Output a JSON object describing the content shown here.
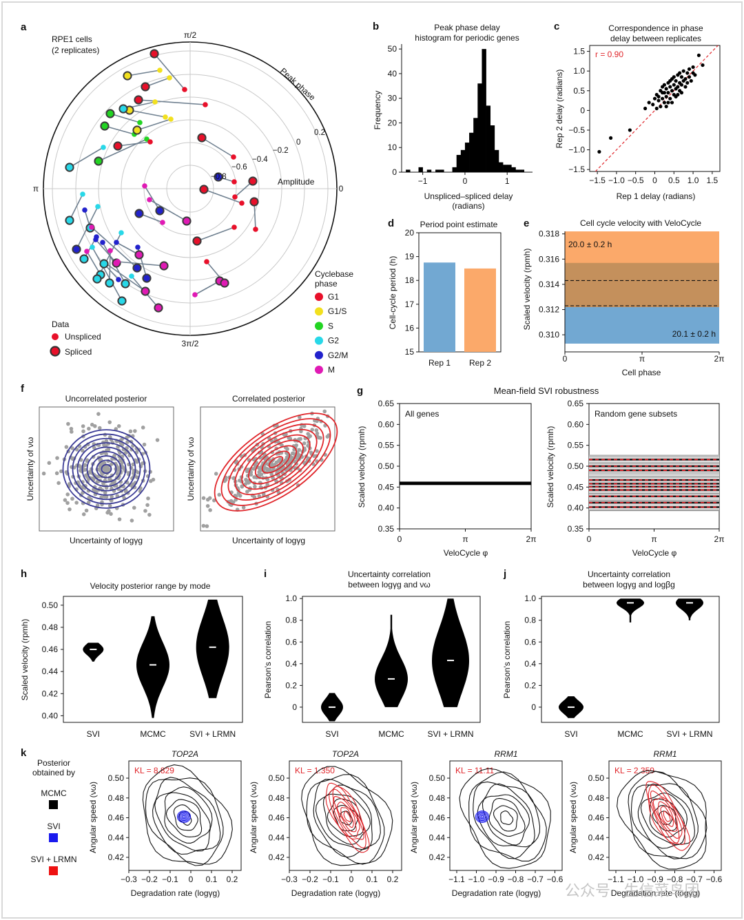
{
  "figure": {
    "panels": {
      "a": {
        "letter": "a",
        "title_lines": [
          "RPE1 cells",
          "(2 replicates)"
        ],
        "angle_labels": [
          "π/2",
          "π",
          "3π/2",
          "0"
        ],
        "radial_labels": [
          "0.2",
          "−0.2",
          "−0.4",
          "−0.6",
          "−0.8"
        ],
        "axis_peak_phase": "Peak phase",
        "axis_amplitude": "Amplitude",
        "data_legend_title": "Data",
        "data_legend": [
          "Unspliced",
          "Spliced"
        ],
        "phase_legend_title": [
          "Cyclebase",
          "phase"
        ],
        "phase_legend": [
          {
            "label": "G1",
            "color": "#e8102a"
          },
          {
            "label": "G1/S",
            "color": "#f2e01e"
          },
          {
            "label": "S",
            "color": "#22d422"
          },
          {
            "label": "G2",
            "color": "#28d8e8"
          },
          {
            "label": "G2/M",
            "color": "#2222cc"
          },
          {
            "label": "M",
            "color": "#e01ab4"
          }
        ]
      },
      "b": {
        "letter": "b",
        "chart_data": {
          "type": "bar",
          "title": "Peak phase delay\nhistogram for periodic genes",
          "xlabel": "Unspliced–spliced delay\n(radians)",
          "ylabel": "Frequency",
          "xticks": [
            "−1",
            "0",
            "1"
          ],
          "yticks": [
            "0",
            "10",
            "20",
            "30",
            "40",
            "50"
          ],
          "xlim": [
            -1.5,
            1.6
          ],
          "ylim": [
            0,
            52
          ],
          "bin_width": 0.1,
          "bins": [
            {
              "x": -1.35,
              "value": 1
            },
            {
              "x": -1.05,
              "value": 2
            },
            {
              "x": -0.85,
              "value": 1
            },
            {
              "x": -0.65,
              "value": 1
            },
            {
              "x": -0.55,
              "value": 1
            },
            {
              "x": -0.25,
              "value": 2
            },
            {
              "x": -0.15,
              "value": 7
            },
            {
              "x": -0.05,
              "value": 9
            },
            {
              "x": 0.05,
              "value": 12
            },
            {
              "x": 0.15,
              "value": 16
            },
            {
              "x": 0.25,
              "value": 22
            },
            {
              "x": 0.35,
              "value": 36
            },
            {
              "x": 0.45,
              "value": 50
            },
            {
              "x": 0.55,
              "value": 27
            },
            {
              "x": 0.65,
              "value": 19
            },
            {
              "x": 0.75,
              "value": 9
            },
            {
              "x": 0.85,
              "value": 4
            },
            {
              "x": 0.95,
              "value": 3
            },
            {
              "x": 1.05,
              "value": 3
            },
            {
              "x": 1.15,
              "value": 2
            },
            {
              "x": 1.25,
              "value": 1
            },
            {
              "x": 1.35,
              "value": 1
            }
          ]
        }
      },
      "c": {
        "letter": "c",
        "chart_data": {
          "type": "scatter",
          "title": "Correspondence in phase\ndelay between replicates",
          "xlabel": "Rep 1 delay (radians)",
          "ylabel": "Rep 2 delay (radians)",
          "annotation": "r = 0.90",
          "xticks": [
            "−1.5",
            "−1.0",
            "−0.5",
            "0",
            "0.5",
            "1.0",
            "1.5"
          ],
          "yticks": [
            "−1.5",
            "−1.0",
            "−0.5",
            "0",
            "0.5",
            "1.0",
            "1.5"
          ],
          "xlim": [
            -1.7,
            1.7
          ],
          "ylim": [
            -1.55,
            1.65
          ],
          "points": [
            [
              -1.45,
              -1.05
            ],
            [
              -1.15,
              -0.7
            ],
            [
              -0.65,
              -0.5
            ],
            [
              -0.25,
              0.05
            ],
            [
              -0.15,
              0.2
            ],
            [
              -0.05,
              0.15
            ],
            [
              0.0,
              0.3
            ],
            [
              0.05,
              0.4
            ],
            [
              0.1,
              0.35
            ],
            [
              0.1,
              0.25
            ],
            [
              0.15,
              0.5
            ],
            [
              0.2,
              0.3
            ],
            [
              0.2,
              0.6
            ],
            [
              0.25,
              0.45
            ],
            [
              0.25,
              0.2
            ],
            [
              0.3,
              0.55
            ],
            [
              0.3,
              0.35
            ],
            [
              0.35,
              0.7
            ],
            [
              0.35,
              0.45
            ],
            [
              0.4,
              0.6
            ],
            [
              0.4,
              0.3
            ],
            [
              0.45,
              0.8
            ],
            [
              0.45,
              0.5
            ],
            [
              0.5,
              0.65
            ],
            [
              0.5,
              0.4
            ],
            [
              0.55,
              0.75
            ],
            [
              0.55,
              0.55
            ],
            [
              0.6,
              0.9
            ],
            [
              0.6,
              0.6
            ],
            [
              0.65,
              0.7
            ],
            [
              0.65,
              0.5
            ],
            [
              0.7,
              0.85
            ],
            [
              0.7,
              0.65
            ],
            [
              0.75,
              0.75
            ],
            [
              0.75,
              1.0
            ],
            [
              0.8,
              0.8
            ],
            [
              0.8,
              0.6
            ],
            [
              0.85,
              0.95
            ],
            [
              0.9,
              0.85
            ],
            [
              0.9,
              1.05
            ],
            [
              0.95,
              0.75
            ],
            [
              1.0,
              1.1
            ],
            [
              1.05,
              0.9
            ],
            [
              1.15,
              1.4
            ],
            [
              1.25,
              1.15
            ],
            [
              0.45,
              0.2
            ],
            [
              0.3,
              0.1
            ],
            [
              0.15,
              0.1
            ],
            [
              0.55,
              0.35
            ],
            [
              0.35,
              0.2
            ],
            [
              0.6,
              0.4
            ],
            [
              0.7,
              0.45
            ],
            [
              0.2,
              0.45
            ],
            [
              0.5,
              0.85
            ],
            [
              0.85,
              0.7
            ],
            [
              0.4,
              0.75
            ],
            [
              0.65,
              0.95
            ],
            [
              1.0,
              0.95
            ],
            [
              0.05,
              0.05
            ],
            [
              0.25,
              0.65
            ]
          ]
        }
      },
      "d": {
        "letter": "d",
        "chart_data": {
          "type": "bar",
          "title": "Period point estimate",
          "ylabel": "Cell-cycle period (h)",
          "categories": [
            "Rep 1",
            "Rep 2"
          ],
          "values": [
            18.75,
            18.5
          ],
          "colors": [
            "#72a8d2",
            "#fba96a"
          ],
          "ylim": [
            15,
            20
          ],
          "yticks": [
            "15",
            "16",
            "17",
            "18",
            "19",
            "20"
          ]
        }
      },
      "e": {
        "letter": "e",
        "chart_data": {
          "type": "area",
          "title": "Cell cycle velocity with VeloCycle",
          "xlabel": "Cell phase",
          "ylabel": "Scaled velocity (rpmh)",
          "xticks": [
            "0",
            "π",
            "2π"
          ],
          "yticks": [
            "0.310",
            "0.312",
            "0.314",
            "0.316",
            "0.318"
          ],
          "ylim": [
            0.3093,
            0.3182
          ],
          "series": [
            {
              "name": "",
              "label": "20.0 ± 0.2 h",
              "band": [
                0.3122,
                0.3182
              ],
              "color": "#fba96a"
            },
            {
              "name": "",
              "label": "20.1 ± 0.2 h",
              "band": [
                0.3093,
                0.3157
              ],
              "color": "#72a8d2"
            }
          ],
          "dashed": [
            0.3143,
            0.3123
          ]
        }
      },
      "f": {
        "letter": "f",
        "left_title": "Uncorrelated posterior",
        "right_title": "Correlated posterior",
        "ylabel": "Uncertainty of νω",
        "xlabel": "Uncertainty of logγg",
        "left_color": "#3a3a96",
        "right_color": "#e0252a"
      },
      "g": {
        "letter": "g",
        "chart_data": {
          "type": "line",
          "title": "Mean-field SVI robustness",
          "subplots": [
            {
              "label": "All genes",
              "band": [
                0.455,
                0.463
              ],
              "lines": [
                0.459
              ]
            },
            {
              "label": "Random gene subsets",
              "band": [
                0.395,
                0.525
              ],
              "lines": [
                0.402,
                0.413,
                0.428,
                0.443,
                0.451,
                0.458,
                0.467,
                0.49,
                0.5,
                0.516
              ]
            }
          ],
          "xlabel": "VeloCycle φ",
          "ylabel": "Scaled velocity (rpmh)",
          "xticks": [
            "0",
            "π",
            "2π"
          ],
          "yticks": [
            "0.35",
            "0.40",
            "0.45",
            "0.50",
            "0.55",
            "0.60",
            "0.65"
          ],
          "ylim": [
            0.35,
            0.65
          ]
        }
      },
      "h": {
        "letter": "h",
        "chart_data": {
          "type": "violin",
          "title": "Velocity posterior range by mode",
          "ylabel": "Scaled velocity (rpmh)",
          "categories": [
            "SVI",
            "MCMC",
            "SVI + LRMN"
          ],
          "yticks": [
            "0.40",
            "0.42",
            "0.44",
            "0.46",
            "0.48",
            "0.50"
          ],
          "ylim": [
            0.394,
            0.508
          ],
          "medians": [
            0.46,
            0.446,
            0.462
          ],
          "ranges": [
            [
              0.449,
              0.466
            ],
            [
              0.398,
              0.49
            ],
            [
              0.416,
              0.505
            ]
          ]
        }
      },
      "i": {
        "letter": "i",
        "chart_data": {
          "type": "violin",
          "title": "Uncertainty correlation\nbetween logγg and νω",
          "ylabel": "Pearson's correlation",
          "categories": [
            "SVI",
            "MCMC",
            "SVI + LRMN"
          ],
          "yticks": [
            "0",
            "0.2",
            "0.4",
            "0.6",
            "0.8",
            "1.0"
          ],
          "ylim": [
            -0.14,
            1.02
          ],
          "medians": [
            0.0,
            0.26,
            0.43
          ],
          "ranges": [
            [
              -0.13,
              0.13
            ],
            [
              0.0,
              0.85
            ],
            [
              0.0,
              1.0
            ]
          ]
        }
      },
      "j": {
        "letter": "j",
        "chart_data": {
          "type": "violin",
          "title": "Uncertainty correlation\nbetween logγg and logβg",
          "ylabel": "Pearson's correlation",
          "categories": [
            "SVI",
            "MCMC",
            "SVI + LRMN"
          ],
          "yticks": [
            "0",
            "0.2",
            "0.4",
            "0.6",
            "0.8",
            "1.0"
          ],
          "ylim": [
            -0.14,
            1.02
          ],
          "medians": [
            0.0,
            0.96,
            0.96
          ],
          "ranges": [
            [
              -0.1,
              0.1
            ],
            [
              0.78,
              1.0
            ],
            [
              0.8,
              1.0
            ]
          ]
        }
      },
      "k": {
        "letter": "k",
        "legend_title": [
          "Posterior",
          "obtained by"
        ],
        "legend": [
          {
            "label": "MCMC",
            "color": "#000000"
          },
          {
            "label": "SVI",
            "color": "#1a1aee"
          },
          {
            "label": "SVI + LRMN",
            "color": "#ee1111"
          }
        ],
        "ylabel": "Angular speed (νω)",
        "yticks": [
          "0.42",
          "0.44",
          "0.46",
          "0.48",
          "0.50"
        ],
        "subplots": [
          {
            "title": "TOP2A",
            "kl": "KL = 8.829",
            "overlay": "SVI",
            "xlabel": "Degradation rate (logγg)",
            "xticks": [
              "−0.3",
              "−0.2",
              "−0.1",
              "0",
              "0.1",
              "0.2"
            ]
          },
          {
            "title": "TOP2A",
            "kl": "KL = 1.350",
            "overlay": "SVI + LRMN",
            "xlabel": "Degradation rate (logγg)",
            "xticks": [
              "−0.3",
              "−0.2",
              "−0.1",
              "0",
              "0.1",
              "0.2"
            ]
          },
          {
            "title": "RRM1",
            "kl": "KL = 11.11",
            "overlay": "SVI",
            "xlabel": "Degradation rate (logγg)",
            "xticks": [
              "−1.1",
              "−1.0",
              "−0.9",
              "−0.8",
              "−0.7",
              "−0.6"
            ]
          },
          {
            "title": "RRM1",
            "kl": "KL = 2.359",
            "overlay": "SVI + LRMN",
            "xlabel": "Degradation rate (logγg)",
            "xticks": [
              "−1.1",
              "−1.0",
              "−0.9",
              "−0.8",
              "−0.7",
              "−0.6"
            ]
          }
        ]
      }
    },
    "watermark": "公众号 · 生信菜鸟团"
  }
}
